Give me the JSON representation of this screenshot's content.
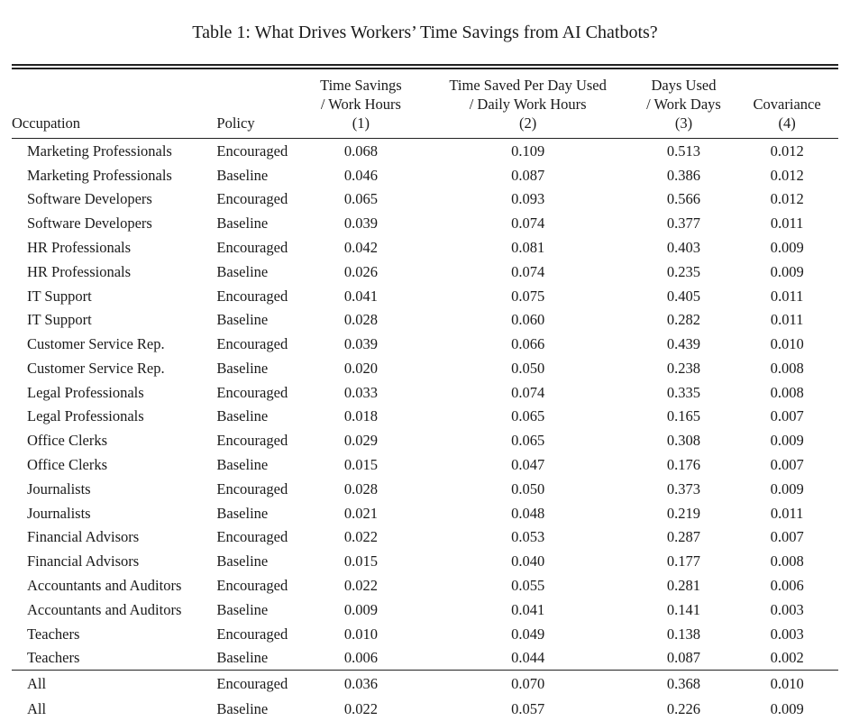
{
  "page": {
    "title": "Table 1: What Drives Workers’ Time Savings from AI Chatbots?"
  },
  "table": {
    "header": {
      "occupation": "Occupation",
      "policy": "Policy",
      "col1": [
        "Time Savings",
        "/ Work Hours",
        "(1)"
      ],
      "col2": [
        "Time Saved Per Day Used",
        "/ Daily Work Hours",
        "(2)"
      ],
      "col3": [
        "Days Used",
        "/ Work Days",
        "(3)"
      ],
      "col4": [
        "Covariance",
        "(4)"
      ]
    },
    "rows": [
      [
        "Marketing Professionals",
        "Encouraged",
        "0.068",
        "0.109",
        "0.513",
        "0.012"
      ],
      [
        "Marketing Professionals",
        "Baseline",
        "0.046",
        "0.087",
        "0.386",
        "0.012"
      ],
      [
        "Software Developers",
        "Encouraged",
        "0.065",
        "0.093",
        "0.566",
        "0.012"
      ],
      [
        "Software Developers",
        "Baseline",
        "0.039",
        "0.074",
        "0.377",
        "0.011"
      ],
      [
        "HR Professionals",
        "Encouraged",
        "0.042",
        "0.081",
        "0.403",
        "0.009"
      ],
      [
        "HR Professionals",
        "Baseline",
        "0.026",
        "0.074",
        "0.235",
        "0.009"
      ],
      [
        "IT Support",
        "Encouraged",
        "0.041",
        "0.075",
        "0.405",
        "0.011"
      ],
      [
        "IT Support",
        "Baseline",
        "0.028",
        "0.060",
        "0.282",
        "0.011"
      ],
      [
        "Customer Service Rep.",
        "Encouraged",
        "0.039",
        "0.066",
        "0.439",
        "0.010"
      ],
      [
        "Customer Service Rep.",
        "Baseline",
        "0.020",
        "0.050",
        "0.238",
        "0.008"
      ],
      [
        "Legal Professionals",
        "Encouraged",
        "0.033",
        "0.074",
        "0.335",
        "0.008"
      ],
      [
        "Legal Professionals",
        "Baseline",
        "0.018",
        "0.065",
        "0.165",
        "0.007"
      ],
      [
        "Office Clerks",
        "Encouraged",
        "0.029",
        "0.065",
        "0.308",
        "0.009"
      ],
      [
        "Office Clerks",
        "Baseline",
        "0.015",
        "0.047",
        "0.176",
        "0.007"
      ],
      [
        "Journalists",
        "Encouraged",
        "0.028",
        "0.050",
        "0.373",
        "0.009"
      ],
      [
        "Journalists",
        "Baseline",
        "0.021",
        "0.048",
        "0.219",
        "0.011"
      ],
      [
        "Financial Advisors",
        "Encouraged",
        "0.022",
        "0.053",
        "0.287",
        "0.007"
      ],
      [
        "Financial Advisors",
        "Baseline",
        "0.015",
        "0.040",
        "0.177",
        "0.008"
      ],
      [
        "Accountants and Auditors",
        "Encouraged",
        "0.022",
        "0.055",
        "0.281",
        "0.006"
      ],
      [
        "Accountants and Auditors",
        "Baseline",
        "0.009",
        "0.041",
        "0.141",
        "0.003"
      ],
      [
        "Teachers",
        "Encouraged",
        "0.010",
        "0.049",
        "0.138",
        "0.003"
      ],
      [
        "Teachers",
        "Baseline",
        "0.006",
        "0.044",
        "0.087",
        "0.002"
      ]
    ],
    "summary_rows": [
      [
        "All",
        "Encouraged",
        "0.036",
        "0.070",
        "0.368",
        "0.010"
      ],
      [
        "All",
        "Baseline",
        "0.022",
        "0.057",
        "0.226",
        "0.009"
      ]
    ]
  },
  "colors": {
    "text": "#1a1a1a",
    "background": "#ffffff",
    "rule": "#222222"
  }
}
